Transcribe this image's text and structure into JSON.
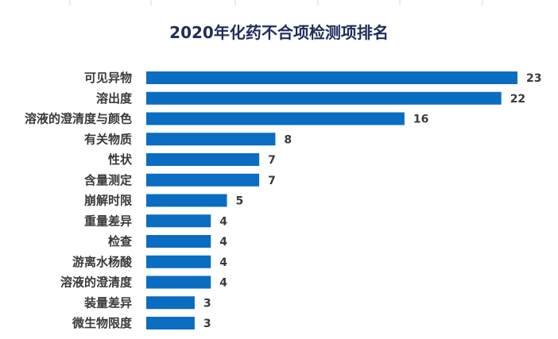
{
  "chart_data": {
    "type": "bar",
    "orientation": "horizontal",
    "title": "2020年化药不合项检测项排名",
    "categories": [
      "可见异物",
      "溶出度",
      "溶液的澄清度与颜色",
      "有关物质",
      "性状",
      "含量测定",
      "崩解时限",
      "重量差异",
      "检查",
      "游离水杨酸",
      "溶液的澄清度",
      "装量差异",
      "微生物限度"
    ],
    "values": [
      23,
      22,
      16,
      8,
      7,
      7,
      5,
      4,
      4,
      4,
      4,
      3,
      3
    ],
    "xlim": [
      0,
      23
    ],
    "grid": "vertical",
    "data_labels": true,
    "bar_color": "#0a6dc2"
  }
}
